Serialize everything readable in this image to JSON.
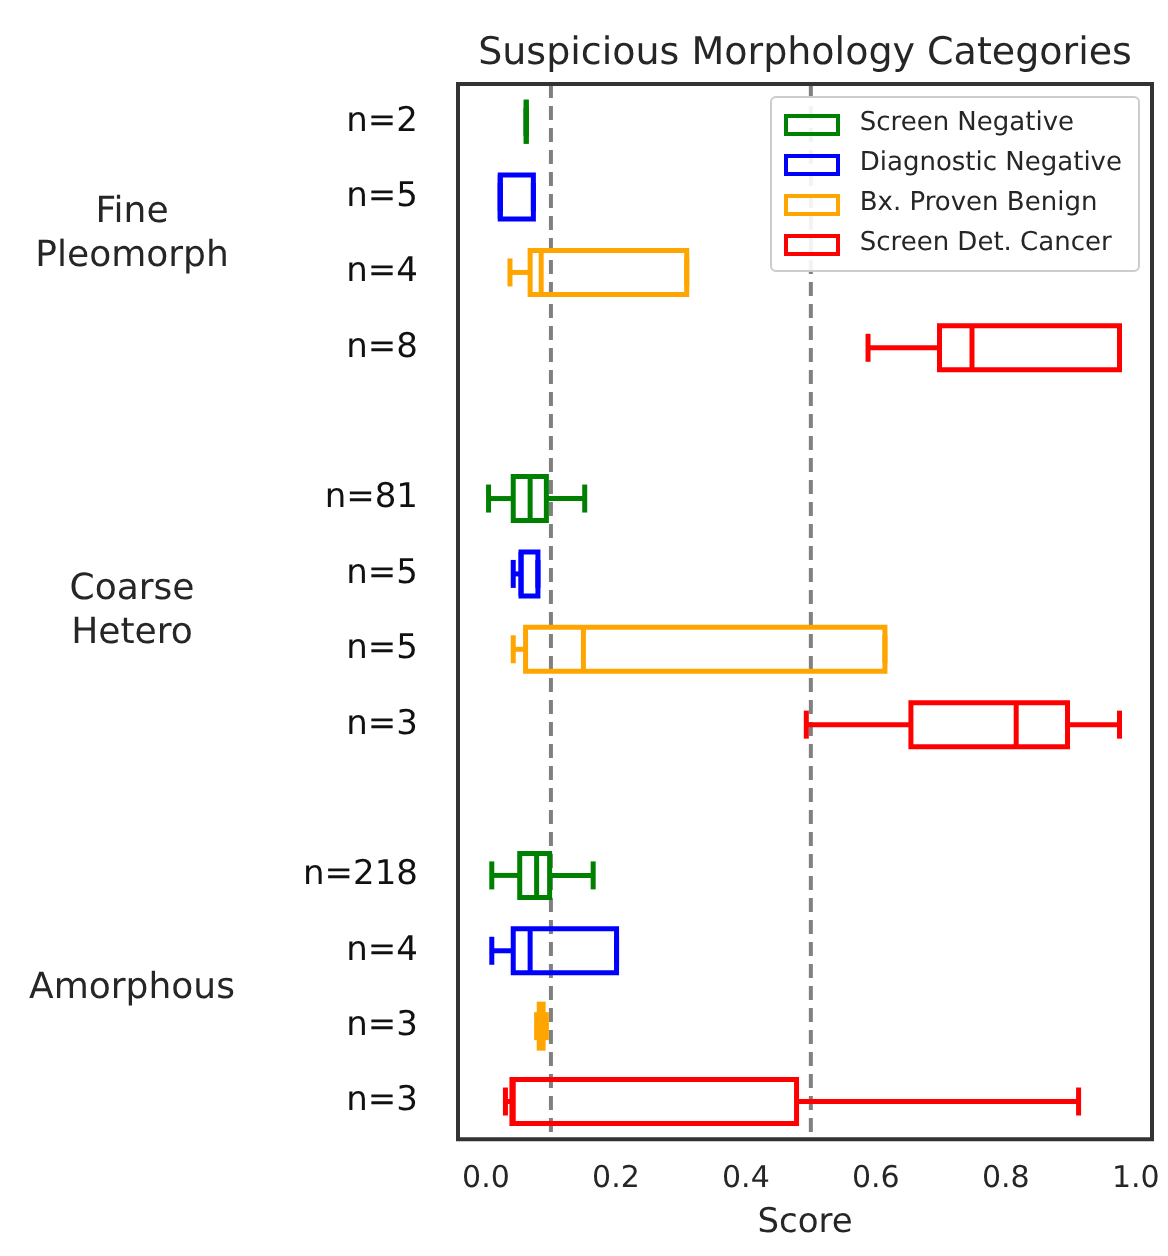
{
  "chart_data": {
    "type": "box",
    "orientation": "horizontal",
    "title": "Suspicious Morphology Categories",
    "xlabel": "Score",
    "categories": [
      "n=2",
      "n=5",
      "n=4",
      "n=8",
      null,
      "n=81",
      "n=5",
      "n=5",
      "n=3",
      null,
      "n=218",
      "n=4",
      "n=3",
      "n=3"
    ],
    "xlim": [
      -0.043,
      1.025
    ],
    "xticks": [
      {
        "value": 0,
        "label": "0.0"
      },
      {
        "value": 0.2,
        "label": "0.2"
      },
      {
        "value": 0.4,
        "label": "0.4"
      },
      {
        "value": 0.6,
        "label": "0.6"
      },
      {
        "value": 0.8,
        "label": "0.8"
      },
      {
        "value": 1,
        "label": "1.0"
      }
    ],
    "legend": "top right",
    "ref_lines": [
      {
        "axis": "x",
        "value": 0.1,
        "color": "#808080",
        "line_style": "dashed"
      },
      {
        "axis": "x",
        "value": 0.5,
        "color": "#808080",
        "line_style": "dashed"
      }
    ],
    "annotations": [
      "Fine Pleomorph",
      "Coarse Hetero",
      "Amorphous"
    ],
    "series": [
      {
        "name": "Screen Negative",
        "color": "#008000",
        "boxes": [
          {
            "low": 0.062,
            "q1": 0.062,
            "median": 0.062,
            "q3": 0.062,
            "high": 0.062
          },
          null,
          null,
          null,
          null,
          {
            "low": 0.004,
            "q1": 0.042,
            "median": 0.068,
            "q3": 0.093,
            "high": 0.152
          },
          null,
          null,
          null,
          null,
          {
            "low": 0.009,
            "q1": 0.052,
            "median": 0.078,
            "q3": 0.098,
            "high": 0.165
          },
          null,
          null,
          null
        ]
      },
      {
        "name": "Diagnostic Negative",
        "color": "#0000ff",
        "boxes": [
          null,
          {
            "low": 0.022,
            "q1": 0.022,
            "median": 0.022,
            "q3": 0.073,
            "high": 0.073
          },
          null,
          null,
          null,
          null,
          {
            "low": 0.042,
            "q1": 0.054,
            "median": 0.054,
            "q3": 0.08,
            "high": 0.08
          },
          null,
          null,
          null,
          null,
          {
            "low": 0.009,
            "q1": 0.042,
            "median": 0.068,
            "q3": 0.201,
            "high": 0.201
          },
          null,
          null
        ]
      },
      {
        "name": "Bx. Proven Benign",
        "color": "#ffa500",
        "boxes": [
          null,
          null,
          {
            "low": 0.037,
            "q1": 0.068,
            "median": 0.085,
            "q3": 0.309,
            "high": 0.309
          },
          null,
          null,
          null,
          null,
          {
            "low": 0.042,
            "q1": 0.061,
            "median": 0.15,
            "q3": 0.614,
            "high": 0.614
          },
          null,
          null,
          null,
          null,
          {
            "low": 0.078,
            "q1": 0.082,
            "median": 0.085,
            "q3": 0.088,
            "high": 0.093
          },
          null
        ]
      },
      {
        "name": "Screen Det. Cancer",
        "color": "#ff0000",
        "boxes": [
          null,
          null,
          null,
          {
            "low": 0.588,
            "q1": 0.698,
            "median": 0.748,
            "q3": 0.975,
            "high": 0.975
          },
          null,
          null,
          null,
          null,
          {
            "low": 0.493,
            "q1": 0.654,
            "median": 0.816,
            "q3": 0.895,
            "high": 0.975
          },
          null,
          null,
          null,
          null,
          {
            "low": 0.03,
            "q1": 0.04,
            "median": 0.042,
            "q3": 0.478,
            "high": 0.912
          }
        ]
      }
    ]
  }
}
